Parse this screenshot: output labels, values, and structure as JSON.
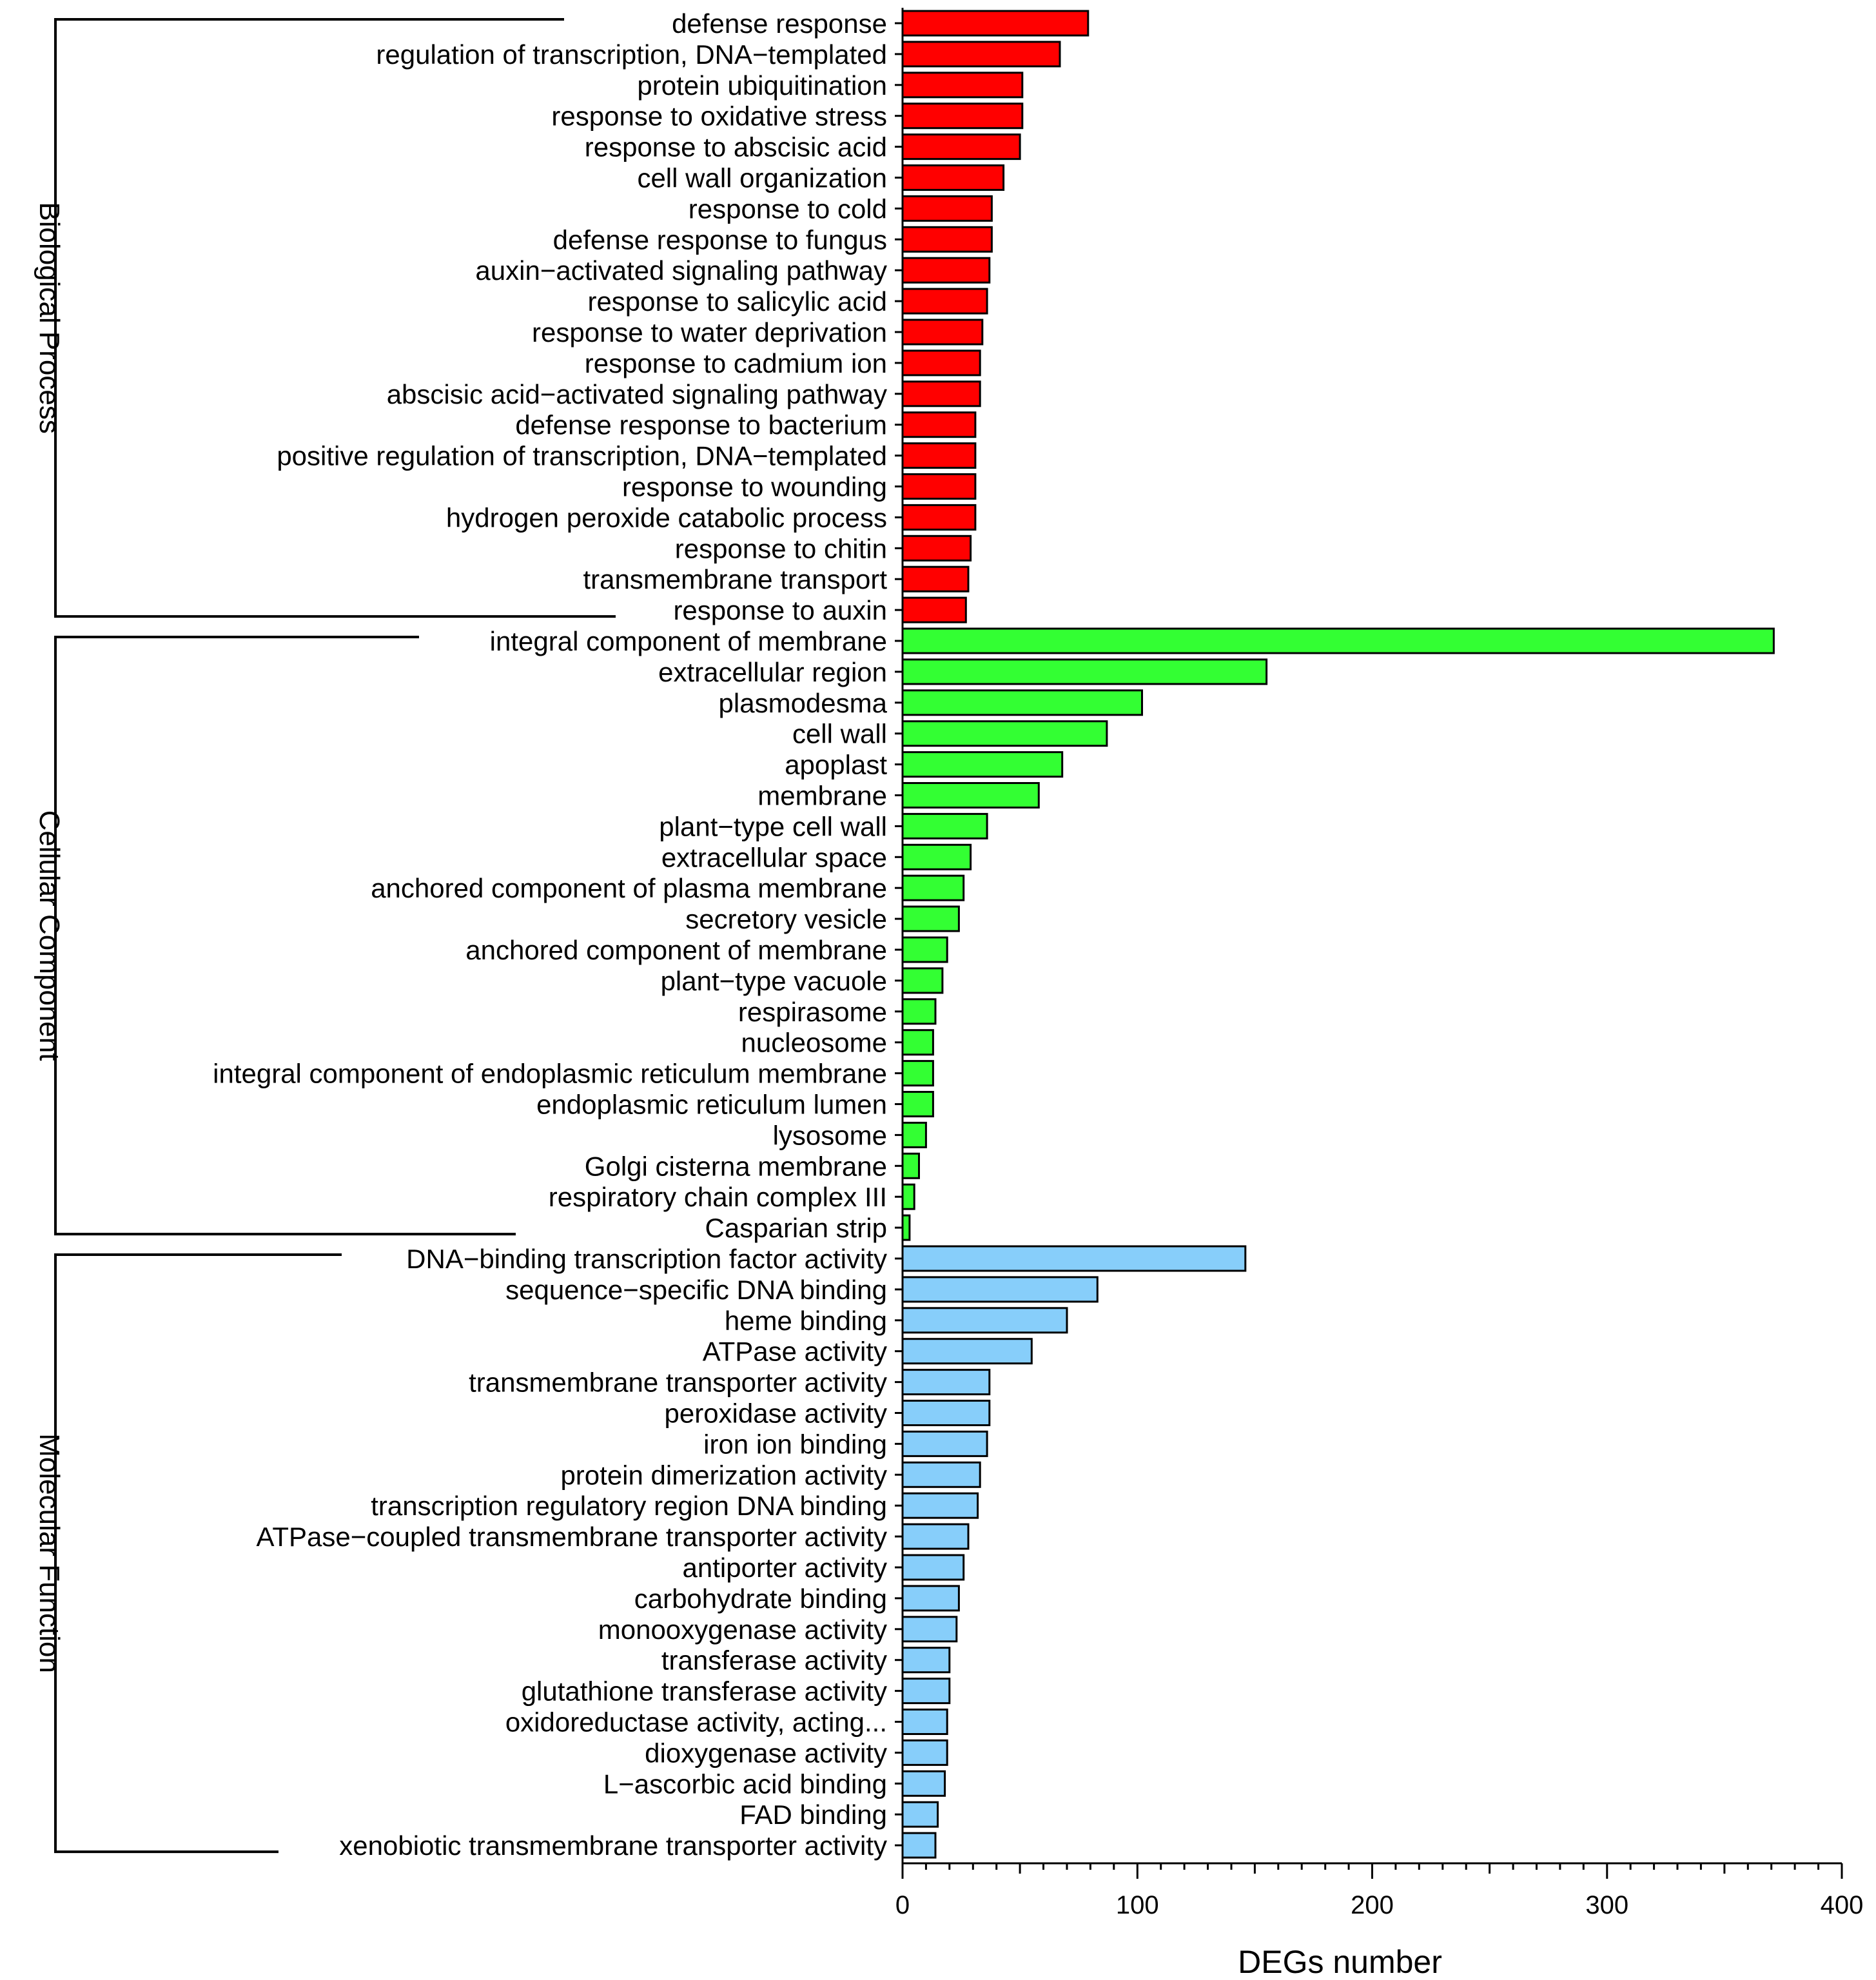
{
  "chart_data": {
    "type": "bar",
    "orientation": "horizontal",
    "xlabel": "DEGs number",
    "xlim": [
      0,
      400
    ],
    "x_ticks": [
      "0",
      "100",
      "200",
      "300",
      "400"
    ],
    "x_minor_tick_step": 10,
    "grid": false,
    "groups": [
      {
        "name": "Biological Process",
        "color": "#ff0000",
        "categories": [
          "defense response",
          "regulation of transcription, DNA−templated",
          "protein ubiquitination",
          "response to oxidative stress",
          "response to abscisic acid",
          "cell wall organization",
          "response to cold",
          "defense response to fungus",
          "auxin−activated signaling pathway",
          "response to salicylic acid",
          "response to water deprivation",
          "response to cadmium ion",
          "abscisic acid−activated signaling pathway",
          "defense response to bacterium",
          "positive regulation of transcription, DNA−templated",
          "response to wounding",
          "hydrogen peroxide catabolic process",
          "response to chitin",
          "transmembrane transport",
          "response to auxin"
        ],
        "values": [
          79,
          67,
          51,
          51,
          50,
          43,
          38,
          38,
          37,
          36,
          34,
          33,
          33,
          31,
          31,
          31,
          31,
          29,
          28,
          27
        ]
      },
      {
        "name": "Cellular Component",
        "color": "#33ff33",
        "categories": [
          "integral component of membrane",
          "extracellular region",
          "plasmodesma",
          "cell wall",
          "apoplast",
          "membrane",
          "plant−type cell wall",
          "extracellular space",
          "anchored component of plasma membrane",
          "secretory vesicle",
          "anchored component of membrane",
          "plant−type vacuole",
          "respirasome",
          "nucleosome",
          "integral component of endoplasmic reticulum membrane",
          "endoplasmic reticulum lumen",
          "lysosome",
          "Golgi cisterna membrane",
          "respiratory chain complex III",
          "Casparian strip"
        ],
        "values": [
          371,
          155,
          102,
          87,
          68,
          58,
          36,
          29,
          26,
          24,
          19,
          17,
          14,
          13,
          13,
          13,
          10,
          7,
          5,
          3
        ]
      },
      {
        "name": "Molecular Function",
        "color": "#87cefa",
        "categories": [
          "DNA−binding transcription factor activity",
          "sequence−specific DNA binding",
          "heme binding",
          "ATPase activity",
          "transmembrane transporter activity",
          "peroxidase activity",
          "iron ion binding",
          "protein dimerization activity",
          "transcription regulatory region DNA binding",
          "ATPase−coupled transmembrane transporter activity",
          "antiporter activity",
          "carbohydrate binding",
          "monooxygenase activity",
          "transferase activity",
          "glutathione transferase activity",
          "oxidoreductase activity, acting...",
          "dioxygenase activity",
          "L−ascorbic acid binding",
          "FAD binding",
          "xenobiotic transmembrane transporter activity"
        ],
        "values": [
          146,
          83,
          70,
          55,
          37,
          37,
          36,
          33,
          32,
          28,
          26,
          24,
          23,
          20,
          20,
          19,
          19,
          18,
          15,
          14
        ]
      }
    ]
  }
}
